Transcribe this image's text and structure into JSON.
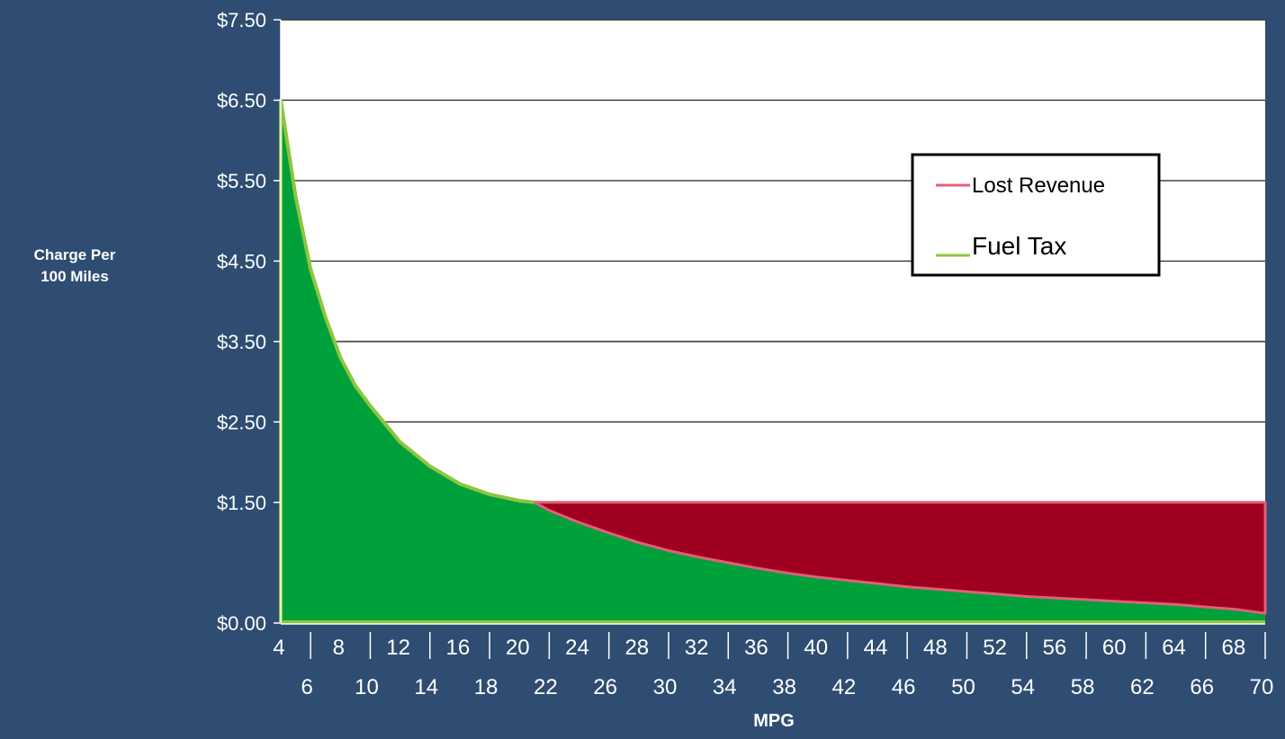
{
  "chart_data": {
    "type": "area",
    "title": "",
    "ylabel": [
      "Charge Per",
      "100 Miles"
    ],
    "xlabel": "MPG",
    "xlim": [
      4,
      70
    ],
    "ylim": [
      0,
      7.5
    ],
    "yticks": [
      0,
      1.5,
      2.5,
      3.5,
      4.5,
      5.5,
      6.5,
      7.5
    ],
    "ytick_labels": [
      "$0.00",
      "$1.50",
      "$2.50",
      "$3.50",
      "$4.50",
      "$5.50",
      "$6.50",
      "$7.50"
    ],
    "xticks_row1": [
      4,
      8,
      12,
      16,
      20,
      24,
      28,
      32,
      36,
      40,
      44,
      48,
      52,
      56,
      60,
      64,
      68
    ],
    "xticks_row2": [
      6,
      10,
      14,
      18,
      22,
      26,
      30,
      34,
      38,
      42,
      46,
      50,
      54,
      58,
      62,
      66,
      70
    ],
    "grid": true,
    "legend": "top-right",
    "series": [
      {
        "name": "Lost Revenue",
        "color": "#e0607a",
        "fill": "#a00020",
        "x": [
          21,
          22,
          24,
          26,
          28,
          30,
          32,
          34,
          36,
          38,
          40,
          42,
          44,
          46,
          48,
          50,
          52,
          54,
          56,
          58,
          60,
          62,
          64,
          66,
          68,
          70
        ],
        "upper": [
          1.5,
          1.5,
          1.5,
          1.5,
          1.5,
          1.5,
          1.5,
          1.5,
          1.5,
          1.5,
          1.5,
          1.5,
          1.5,
          1.5,
          1.5,
          1.5,
          1.5,
          1.5,
          1.5,
          1.5,
          1.5,
          1.5,
          1.5,
          1.5,
          1.5,
          1.5
        ],
        "lower": [
          1.5,
          1.4,
          1.25,
          1.12,
          1.0,
          0.9,
          0.82,
          0.75,
          0.68,
          0.62,
          0.57,
          0.53,
          0.49,
          0.45,
          0.42,
          0.39,
          0.36,
          0.33,
          0.31,
          0.29,
          0.27,
          0.25,
          0.23,
          0.2,
          0.17,
          0.12
        ]
      },
      {
        "name": "Fuel Tax",
        "color": "#8cc63f",
        "fill": "#00a03a",
        "x": [
          4,
          5,
          6,
          7,
          8,
          9,
          10,
          12,
          14,
          16,
          18,
          20,
          21,
          22,
          24,
          26,
          28,
          30,
          32,
          34,
          36,
          38,
          40,
          42,
          44,
          46,
          48,
          50,
          52,
          54,
          56,
          58,
          60,
          62,
          64,
          66,
          68,
          70
        ],
        "values": [
          6.5,
          5.3,
          4.4,
          3.8,
          3.3,
          2.95,
          2.7,
          2.25,
          1.95,
          1.73,
          1.6,
          1.52,
          1.5,
          1.4,
          1.25,
          1.12,
          1.0,
          0.9,
          0.82,
          0.75,
          0.68,
          0.62,
          0.57,
          0.53,
          0.49,
          0.45,
          0.42,
          0.39,
          0.36,
          0.33,
          0.31,
          0.29,
          0.27,
          0.25,
          0.23,
          0.2,
          0.17,
          0.12
        ]
      }
    ]
  }
}
